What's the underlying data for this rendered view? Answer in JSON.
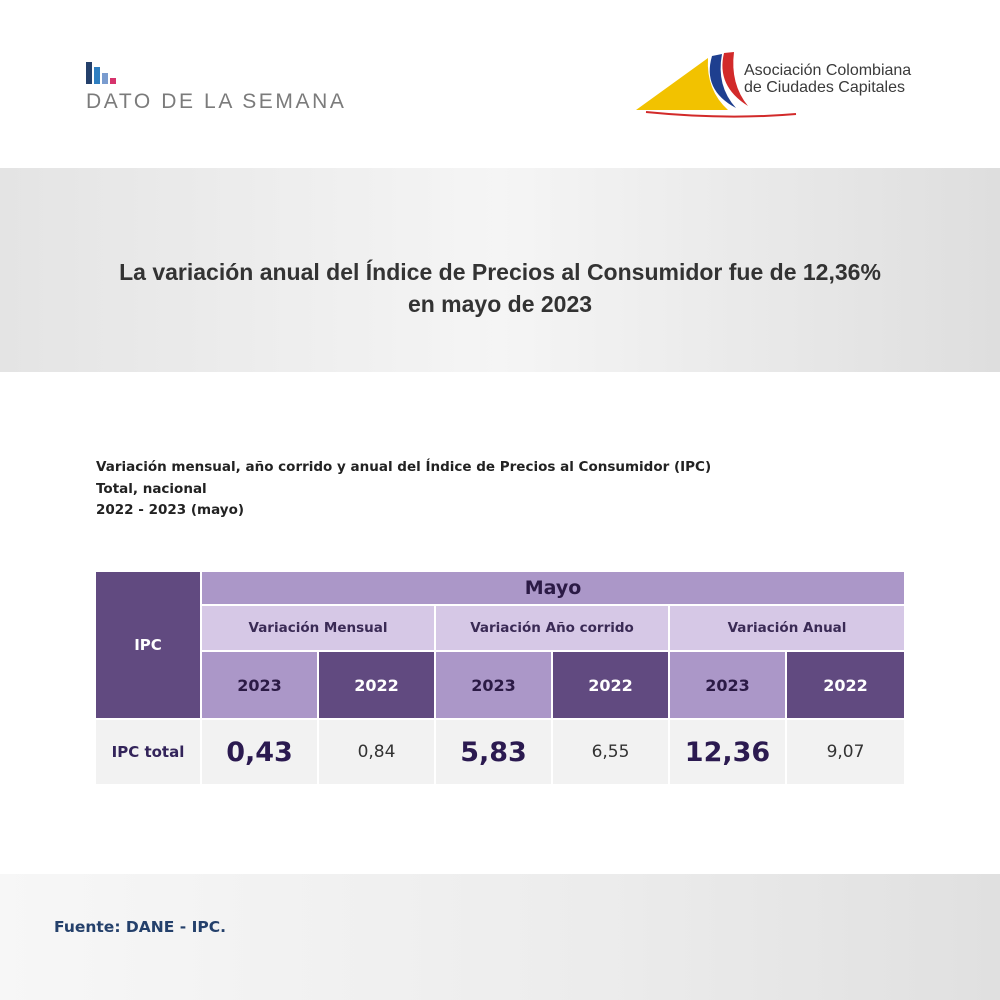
{
  "header": {
    "brand_label": "DATO DE LA SEMANA",
    "brand_icon": "bar-chart-icon",
    "brand_colors": [
      "#24406b",
      "#2f7fc1",
      "#7a9ccf",
      "#d6336c"
    ],
    "logo_line1": "Asociación Colombiana",
    "logo_line2": "de Ciudades Capitales",
    "logo_colors": [
      "#f2c200",
      "#1e3f8f",
      "#d22a2a"
    ]
  },
  "headline": {
    "line1": "La variación anual del Índice de Precios al Consumidor fue de 12,36%",
    "line2": "en mayo de 2023"
  },
  "table": {
    "title_line1": "Variación mensual, año corrido y anual del Índice de Precios al Consumidor (IPC)",
    "title_line2": "Total, nacional",
    "period": "2022 - 2023 (mayo)",
    "row_header": "IPC",
    "month_header": "Mayo",
    "groups": [
      "Variación Mensual",
      "Variación Año corrido",
      "Variación Anual"
    ],
    "years": [
      "2023",
      "2022",
      "2023",
      "2022",
      "2023",
      "2022"
    ],
    "row_label": "IPC total",
    "values": [
      "0,43",
      "0,84",
      "5,83",
      "6,55",
      "12,36",
      "9,07"
    ]
  },
  "footer": {
    "source": "Fuente: DANE - IPC."
  }
}
